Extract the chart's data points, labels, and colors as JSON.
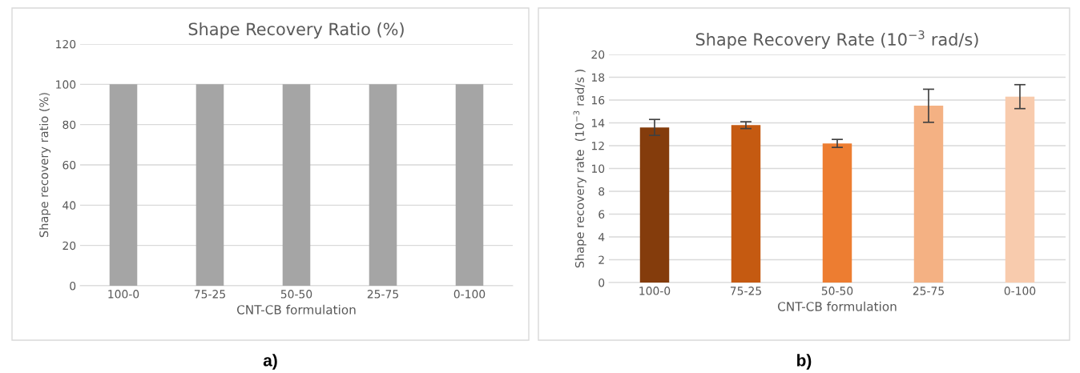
{
  "chart_data": [
    {
      "type": "bar",
      "title": "Shape Recovery Ratio (%)",
      "xlabel": "CNT-CB formulation",
      "ylabel": "Shape recovery ratio (%)",
      "categories": [
        "100-0",
        "75-25",
        "50-50",
        "25-75",
        "0-100"
      ],
      "values": [
        100,
        100,
        100,
        100,
        100
      ],
      "color": "#a5a5a5",
      "ylim": [
        0,
        120
      ],
      "yticks": [
        0,
        20,
        40,
        60,
        80,
        100,
        120
      ],
      "grid": "y",
      "annotations": [
        "a)"
      ]
    },
    {
      "type": "bar",
      "title": "Shape Recovery Rate (10$^{−3}$ rad/s)",
      "xlabel": "CNT-CB formulation",
      "ylabel": "Shape recovery rate  (10$^{−3}$ rad/s )",
      "categories": [
        "100-0",
        "75-25",
        "50-50",
        "25-75",
        "0-100"
      ],
      "values": [
        13.6,
        13.8,
        12.2,
        15.5,
        16.3
      ],
      "errors": [
        0.7,
        0.3,
        0.35,
        1.45,
        1.05
      ],
      "colors": [
        "#843c0c",
        "#c55a11",
        "#ed7d31",
        "#f4b183",
        "#f8cbad"
      ],
      "ylim": [
        0,
        20
      ],
      "yticks": [
        0,
        2,
        4,
        6,
        8,
        10,
        12,
        14,
        16,
        18,
        20
      ],
      "grid": "y",
      "annotations": [
        "b)"
      ]
    }
  ]
}
